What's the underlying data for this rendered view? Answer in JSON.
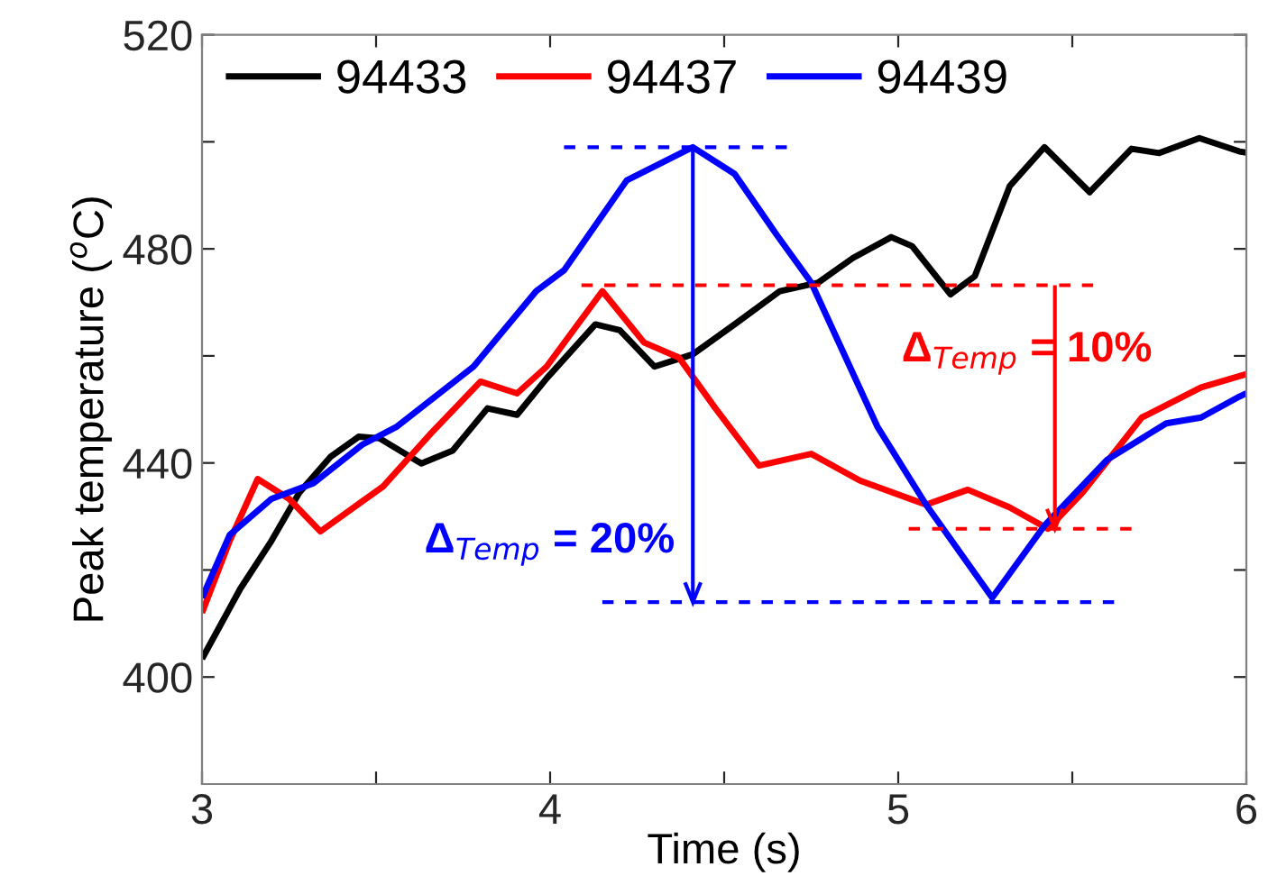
{
  "chart_data": {
    "type": "line",
    "xlabel": "Time (s)",
    "ylabel": "Peak temperature ($^{o}$C)",
    "xlim": [
      3,
      6
    ],
    "ylim": [
      380,
      520
    ],
    "xticks": [
      3,
      {
        "value": 3.5,
        "label": null
      },
      4,
      {
        "value": 4.5,
        "label": null
      },
      5,
      {
        "value": 5.5,
        "label": null
      },
      6
    ],
    "yticks": [
      400,
      {
        "value": 420,
        "label": null
      },
      440,
      {
        "value": 460,
        "label": null
      },
      480,
      {
        "value": 500,
        "label": null
      },
      520
    ],
    "grid": false,
    "legend": "top left",
    "marker": "none",
    "line_style": "solid",
    "series": [
      {
        "name": "94433",
        "color": "#000000",
        "x": [
          3.0,
          3.11,
          3.2,
          3.28,
          3.37,
          3.45,
          3.51,
          3.63,
          3.72,
          3.82,
          3.905,
          3.99,
          4.13,
          4.2,
          4.3,
          4.41,
          4.53,
          4.66,
          4.77,
          4.87,
          4.98,
          5.04,
          5.15,
          5.22,
          5.32,
          5.42,
          5.55,
          5.67,
          5.75,
          5.865,
          5.98,
          6.0
        ],
        "values": [
          403.4,
          416.5,
          425.5,
          434.5,
          441.2,
          444.9,
          444.6,
          439.9,
          442.3,
          450.2,
          449,
          455.8,
          465.9,
          464.8,
          458,
          460.3,
          465.9,
          472.1,
          473.7,
          478.3,
          482.2,
          480.5,
          471.5,
          474.9,
          491.7,
          499,
          490.6,
          498.7,
          497.9,
          500.7,
          498.2,
          498
        ]
      },
      {
        "name": "94437",
        "color": "#ff0000",
        "x": [
          3.0,
          3.08,
          3.16,
          3.25,
          3.34,
          3.46,
          3.52,
          3.66,
          3.8,
          3.905,
          3.99,
          4.15,
          4.27,
          4.37,
          4.475,
          4.6,
          4.75,
          4.89,
          5.08,
          5.2,
          5.32,
          5.43,
          5.53,
          5.7,
          5.87,
          6.0
        ],
        "values": [
          412,
          425.5,
          437,
          433.3,
          427.2,
          432.8,
          435.6,
          445.7,
          455.2,
          453,
          458,
          472.1,
          462.5,
          459.7,
          450.2,
          439.5,
          441.7,
          436.7,
          432.2,
          435,
          431.7,
          427.7,
          434.5,
          448.5,
          454.1,
          456.6
        ]
      },
      {
        "name": "94439",
        "color": "#0000ff",
        "x": [
          3.0,
          3.08,
          3.2,
          3.32,
          3.46,
          3.56,
          3.78,
          3.96,
          4.04,
          4.22,
          4.41,
          4.53,
          4.65,
          4.75,
          4.94,
          5.08,
          5.27,
          5.42,
          5.6,
          5.77,
          5.87,
          5.98,
          6.0
        ],
        "values": [
          414.8,
          426.6,
          433.3,
          436.2,
          443.4,
          446.8,
          458,
          472.1,
          476,
          492.8,
          499,
          494,
          482.7,
          473.7,
          446.8,
          432.2,
          414.8,
          428.3,
          440.6,
          447.4,
          448.5,
          452.4,
          453
        ]
      },
      {
        "color": "#0000ff",
        "line_style": "dashed",
        "x": [
          4.04,
          4.68
        ],
        "values": [
          499,
          499
        ]
      },
      {
        "color": "#0000ff",
        "line_style": "dashed",
        "x": [
          4.15,
          5.62
        ],
        "values": [
          414,
          414
        ]
      },
      {
        "color": "#ff0000",
        "line_style": "dashed",
        "x": [
          4.09,
          5.56
        ],
        "values": [
          473.2,
          473.2
        ]
      },
      {
        "color": "#ff0000",
        "line_style": "dashed",
        "x": [
          5.03,
          5.67
        ],
        "values": [
          427.7,
          427.7
        ]
      },
      {
        "color": "#0000ff",
        "x": [
          4.41,
          4.41
        ],
        "values": [
          499,
          414
        ]
      },
      {
        "color": "#ff0000",
        "x": [
          5.45,
          5.45
        ],
        "values": [
          473.2,
          427.7
        ]
      }
    ],
    "annotations": [
      "Δ$_{Temp}$ = 20%",
      "Δ$_{Temp}$ = 10%"
    ]
  }
}
